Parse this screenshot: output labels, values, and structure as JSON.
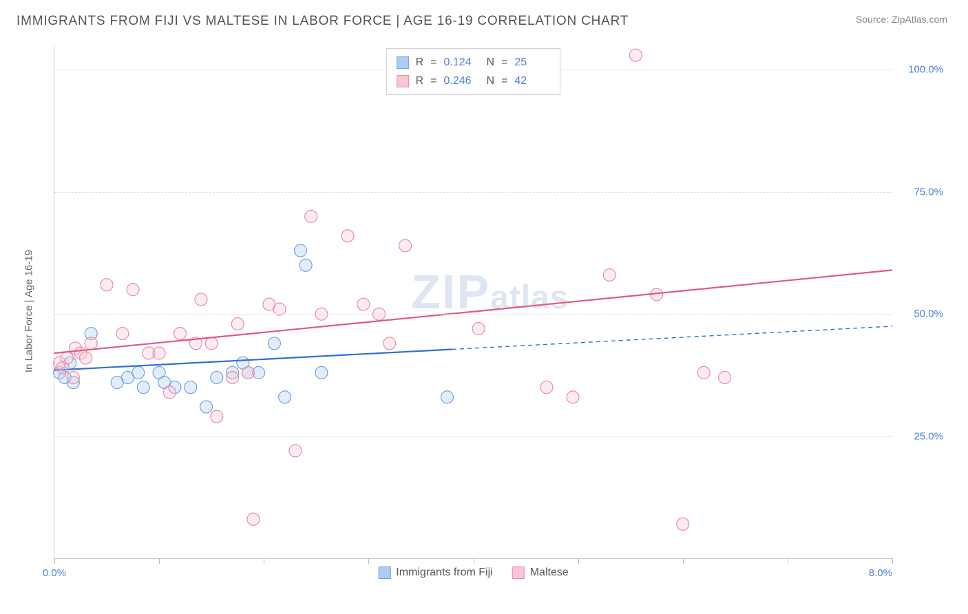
{
  "title": "IMMIGRANTS FROM FIJI VS MALTESE IN LABOR FORCE | AGE 16-19 CORRELATION CHART",
  "source_label": "Source:",
  "source_name": "ZipAtlas.com",
  "watermark_main": "ZIP",
  "watermark_sub": "atlas",
  "y_axis_title": "In Labor Force | Age 16-19",
  "chart": {
    "type": "scatter",
    "xmin": 0.0,
    "xmax": 8.0,
    "ymin": 0.0,
    "ymax": 105.0,
    "x_tick_positions": [
      0,
      1,
      2,
      3,
      4,
      5,
      6,
      7,
      8
    ],
    "x_tick_labels_shown": {
      "0": "0.0%",
      "8": "8.0%"
    },
    "y_tick_positions": [
      25,
      50,
      75,
      100
    ],
    "y_tick_labels": {
      "25": "25.0%",
      "50": "50.0%",
      "75": "75.0%",
      "100": "100.0%"
    },
    "background_color": "#ffffff",
    "grid_color": "#dddddd",
    "axis_color": "#cccccc",
    "tick_label_color": "#4a7fd6",
    "marker_radius": 9,
    "marker_stroke_width": 1.2,
    "marker_opacity": 0.35,
    "trend_line_width": 2.2
  },
  "series": [
    {
      "key": "fiji",
      "label": "Immigrants from Fiji",
      "color_fill": "#aeccf1",
      "color_stroke": "#6fa3e0",
      "line_color": "#2f6fd0",
      "R": "0.124",
      "N": "25",
      "trend": {
        "y_at_xmin": 38.5,
        "y_at_xmax": 47.5,
        "solid_until_x": 3.8
      },
      "points": [
        {
          "x": 0.05,
          "y": 38
        },
        {
          "x": 0.1,
          "y": 37
        },
        {
          "x": 0.15,
          "y": 40
        },
        {
          "x": 0.18,
          "y": 36
        },
        {
          "x": 0.35,
          "y": 46
        },
        {
          "x": 0.6,
          "y": 36
        },
        {
          "x": 0.7,
          "y": 37
        },
        {
          "x": 0.8,
          "y": 38
        },
        {
          "x": 0.85,
          "y": 35
        },
        {
          "x": 1.0,
          "y": 38
        },
        {
          "x": 1.05,
          "y": 36
        },
        {
          "x": 1.15,
          "y": 35
        },
        {
          "x": 1.3,
          "y": 35
        },
        {
          "x": 1.45,
          "y": 31
        },
        {
          "x": 1.55,
          "y": 37
        },
        {
          "x": 1.7,
          "y": 38
        },
        {
          "x": 1.8,
          "y": 40
        },
        {
          "x": 1.85,
          "y": 38
        },
        {
          "x": 1.95,
          "y": 38
        },
        {
          "x": 2.1,
          "y": 44
        },
        {
          "x": 2.2,
          "y": 33
        },
        {
          "x": 2.35,
          "y": 63
        },
        {
          "x": 2.4,
          "y": 60
        },
        {
          "x": 2.55,
          "y": 38
        },
        {
          "x": 3.75,
          "y": 33
        }
      ]
    },
    {
      "key": "maltese",
      "label": "Maltese",
      "color_fill": "#f6c6d3",
      "color_stroke": "#e98ba6",
      "line_color": "#e05a82",
      "R": "0.246",
      "N": "42",
      "trend": {
        "y_at_xmin": 42.0,
        "y_at_xmax": 59.0,
        "solid_until_x": 8.0
      },
      "points": [
        {
          "x": 0.05,
          "y": 40
        },
        {
          "x": 0.08,
          "y": 39
        },
        {
          "x": 0.12,
          "y": 41
        },
        {
          "x": 0.18,
          "y": 37
        },
        {
          "x": 0.2,
          "y": 43
        },
        {
          "x": 0.25,
          "y": 42
        },
        {
          "x": 0.3,
          "y": 41
        },
        {
          "x": 0.35,
          "y": 44
        },
        {
          "x": 0.5,
          "y": 56
        },
        {
          "x": 0.65,
          "y": 46
        },
        {
          "x": 0.75,
          "y": 55
        },
        {
          "x": 0.9,
          "y": 42
        },
        {
          "x": 1.0,
          "y": 42
        },
        {
          "x": 1.1,
          "y": 34
        },
        {
          "x": 1.2,
          "y": 46
        },
        {
          "x": 1.35,
          "y": 44
        },
        {
          "x": 1.4,
          "y": 53
        },
        {
          "x": 1.5,
          "y": 44
        },
        {
          "x": 1.55,
          "y": 29
        },
        {
          "x": 1.7,
          "y": 37
        },
        {
          "x": 1.75,
          "y": 48
        },
        {
          "x": 1.85,
          "y": 38
        },
        {
          "x": 1.9,
          "y": 8
        },
        {
          "x": 2.05,
          "y": 52
        },
        {
          "x": 2.15,
          "y": 51
        },
        {
          "x": 2.3,
          "y": 22
        },
        {
          "x": 2.45,
          "y": 70
        },
        {
          "x": 2.55,
          "y": 50
        },
        {
          "x": 2.8,
          "y": 66
        },
        {
          "x": 2.95,
          "y": 52
        },
        {
          "x": 3.1,
          "y": 50
        },
        {
          "x": 3.2,
          "y": 44
        },
        {
          "x": 3.35,
          "y": 64
        },
        {
          "x": 4.05,
          "y": 47
        },
        {
          "x": 4.7,
          "y": 35
        },
        {
          "x": 4.95,
          "y": 33
        },
        {
          "x": 5.3,
          "y": 58
        },
        {
          "x": 5.55,
          "y": 103
        },
        {
          "x": 5.75,
          "y": 54
        },
        {
          "x": 6.0,
          "y": 7
        },
        {
          "x": 6.2,
          "y": 38
        },
        {
          "x": 6.4,
          "y": 37
        }
      ]
    }
  ],
  "legend_stat_labels": {
    "R": "R",
    "N": "N",
    "eq": "="
  }
}
